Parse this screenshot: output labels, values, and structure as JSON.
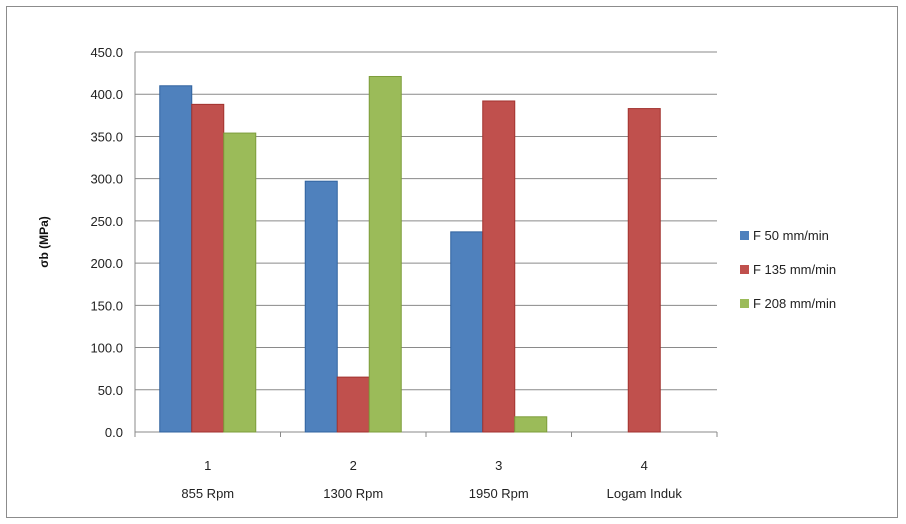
{
  "chart_data": {
    "type": "bar",
    "categories": [
      "1",
      "2",
      "3",
      "4"
    ],
    "category_sublabels": [
      "855 Rpm",
      "1300 Rpm",
      "1950 Rpm",
      "Logam Induk"
    ],
    "series": [
      {
        "name": "F 50 mm/min",
        "color": "#4F81BD",
        "values": [
          410,
          297,
          237,
          0
        ]
      },
      {
        "name": "F 135 mm/min",
        "color": "#C0504D",
        "values": [
          388,
          65,
          392,
          383
        ]
      },
      {
        "name": "F 208 mm/min",
        "color": "#9BBB59",
        "values": [
          354,
          421,
          18,
          0
        ]
      }
    ],
    "ylabel": "σb (MPa)",
    "ylim": [
      0,
      450
    ],
    "yticks": [
      "0.0",
      "50.0",
      "100.0",
      "150.0",
      "200.0",
      "250.0",
      "300.0",
      "350.0",
      "400.0",
      "450.0"
    ],
    "grid": true,
    "legend_position": "right"
  }
}
